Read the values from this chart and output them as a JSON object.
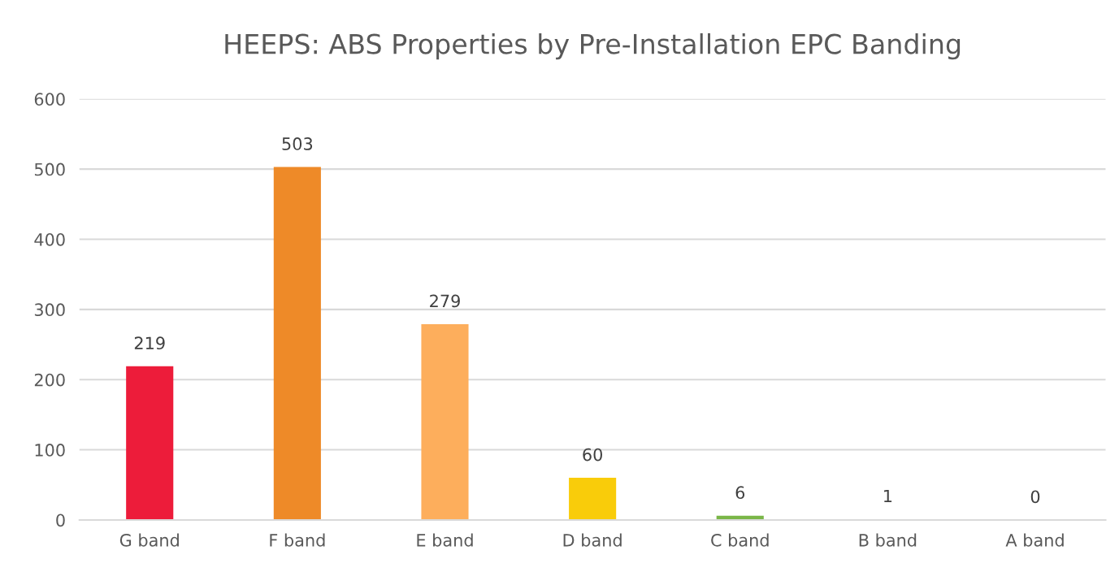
{
  "chart_data": {
    "type": "bar",
    "title": "HEEPS: ABS Properties by Pre-Installation EPC Banding",
    "categories": [
      "G band",
      "F band",
      "E band",
      "D band",
      "C band",
      "B band",
      "A band"
    ],
    "values": [
      219,
      503,
      279,
      60,
      6,
      1,
      0
    ],
    "colors": [
      "#ed1c3a",
      "#ee8a28",
      "#fdae5c",
      "#f9cc0a",
      "#7ab648",
      "#3fa535",
      "#00843d"
    ],
    "ylim": [
      0,
      600
    ],
    "yticks": [
      0,
      100,
      200,
      300,
      400,
      500,
      600
    ],
    "grid": "y",
    "data_labels": true
  }
}
